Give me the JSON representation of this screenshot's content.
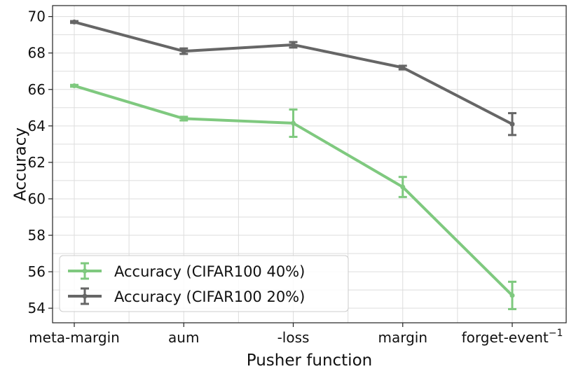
{
  "chart_data": {
    "type": "line",
    "title": "",
    "xlabel": "Pusher function",
    "ylabel": "Accuracy",
    "categories": [
      "meta-margin",
      "aum",
      "-loss",
      "margin",
      "forget-event"
    ],
    "category_superscripts": [
      "",
      "",
      "",
      "",
      "−1"
    ],
    "ylim": [
      53.2,
      70.6
    ],
    "yticks": [
      54,
      56,
      58,
      60,
      62,
      64,
      66,
      68,
      70
    ],
    "grid": true,
    "legend_position": "lower-left",
    "series": [
      {
        "name": "Accuracy (CIFAR100 40%)",
        "color": "#7fc97f",
        "values": [
          66.2,
          64.4,
          64.15,
          60.65,
          54.7
        ],
        "errors": [
          0.05,
          0.1,
          0.75,
          0.55,
          0.75
        ]
      },
      {
        "name": "Accuracy (CIFAR100 20%)",
        "color": "#666666",
        "values": [
          69.7,
          68.1,
          68.45,
          67.2,
          64.1
        ],
        "errors": [
          0.05,
          0.15,
          0.15,
          0.1,
          0.6
        ]
      }
    ]
  }
}
